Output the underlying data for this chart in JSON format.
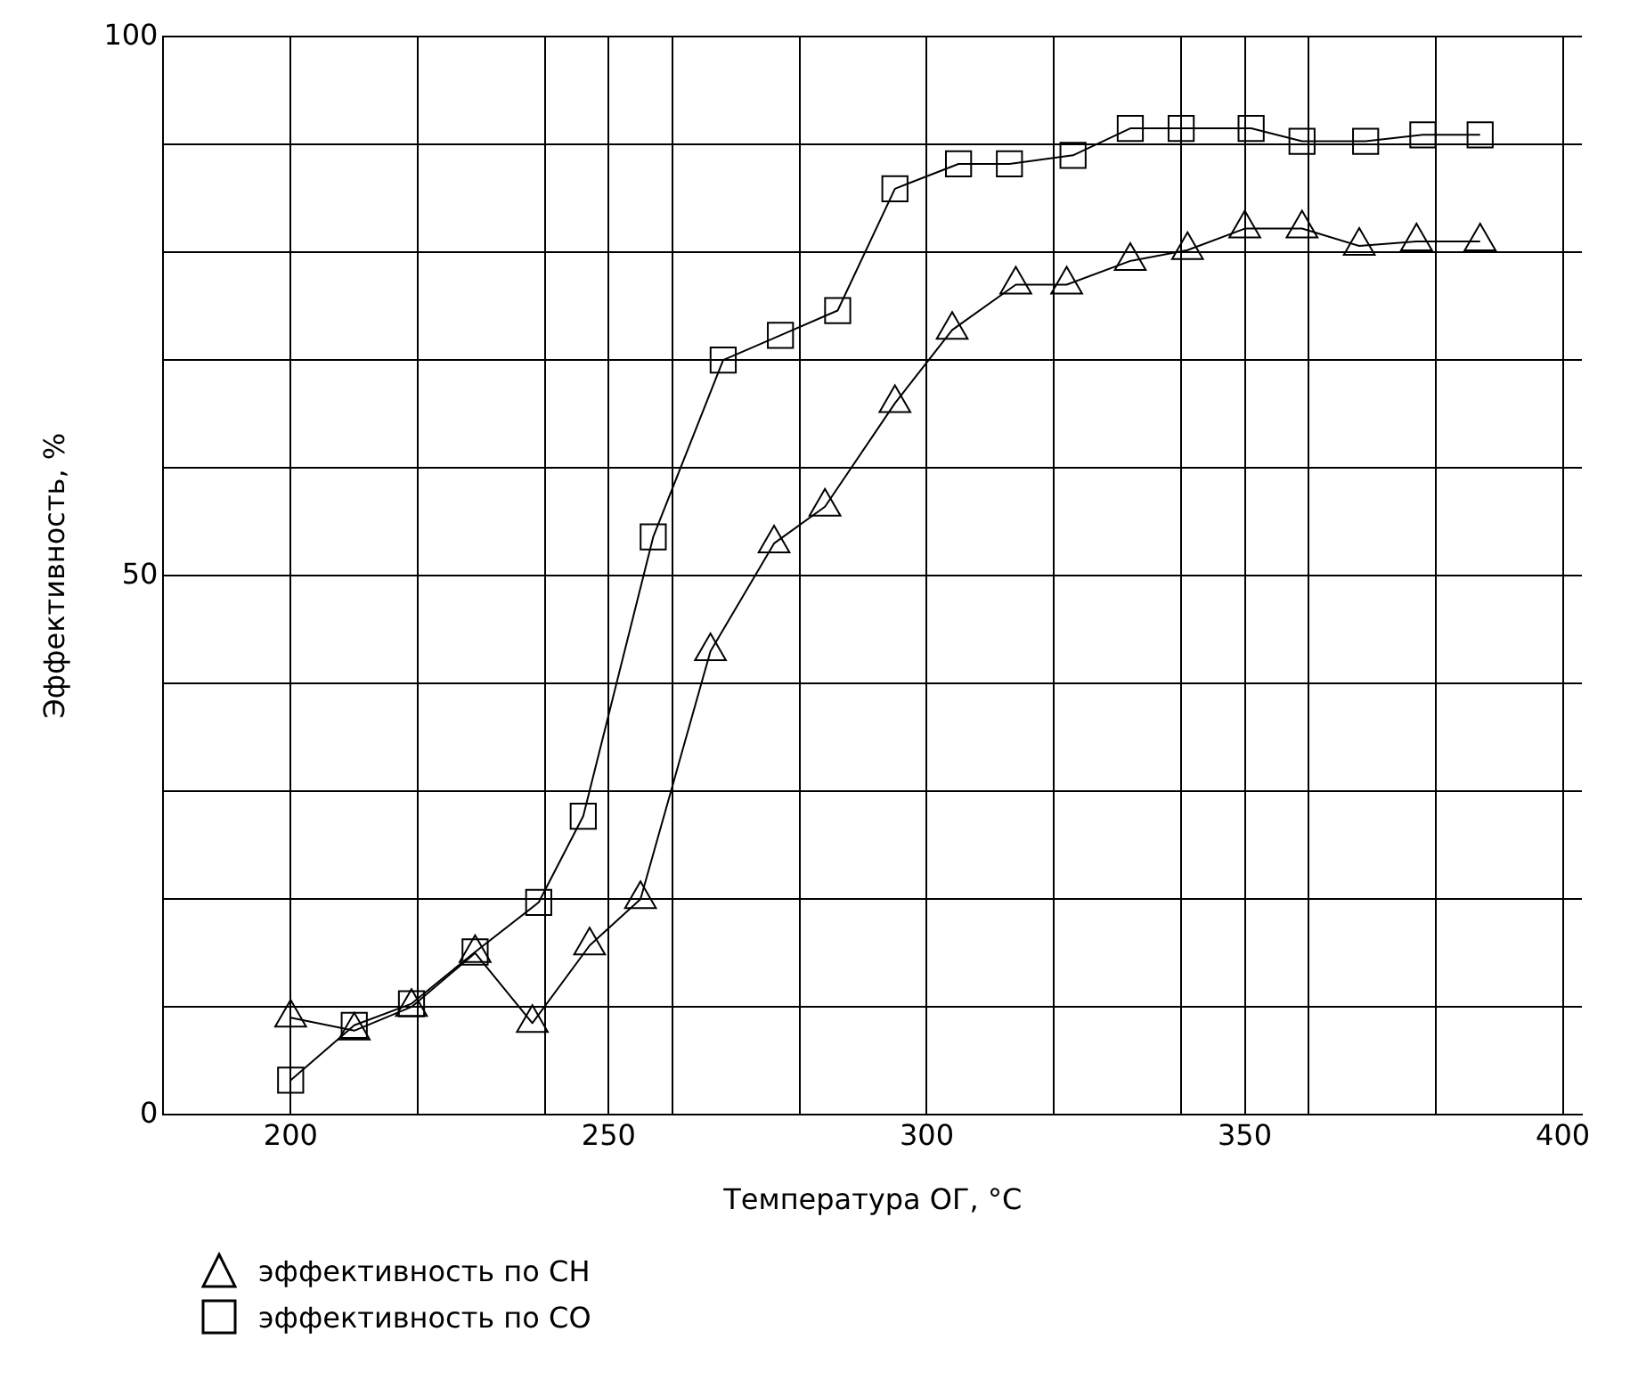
{
  "chart_data": {
    "type": "line",
    "xlabel": "Температура ОГ, °С",
    "ylabel": "Эффективность, %",
    "xlim": [
      180,
      403
    ],
    "ylim": [
      0,
      100
    ],
    "xticks": [
      200,
      {
        "value": 220,
        "label": null
      },
      {
        "value": 240,
        "label": null
      },
      250,
      {
        "value": 260,
        "label": null
      },
      {
        "value": 280,
        "label": null
      },
      300,
      {
        "value": 320,
        "label": null
      },
      {
        "value": 340,
        "label": null
      },
      350,
      {
        "value": 360,
        "label": null
      },
      {
        "value": 380,
        "label": null
      },
      400
    ],
    "yticks": [
      0,
      {
        "value": 10,
        "label": null
      },
      {
        "value": 20,
        "label": null
      },
      {
        "value": 30,
        "label": null
      },
      {
        "value": 40,
        "label": null
      },
      50,
      {
        "value": 60,
        "label": null
      },
      {
        "value": 70,
        "label": null
      },
      {
        "value": 80,
        "label": null
      },
      {
        "value": 90,
        "label": null
      },
      100
    ],
    "grid": true,
    "legend": "bottom",
    "line_style": "solid",
    "series": [
      {
        "name": "эффективность по CH",
        "color": "#000000",
        "marker": "triangle",
        "x": [
          200,
          210,
          219,
          229,
          238,
          247,
          255,
          266,
          276,
          284,
          295,
          304,
          314,
          322,
          332,
          341,
          350,
          359,
          368,
          377,
          387
        ],
        "values": [
          9,
          7.8,
          10,
          15,
          8.5,
          15.7,
          20,
          43,
          53,
          56.4,
          66,
          72.8,
          77,
          77,
          79.2,
          80.2,
          82.2,
          82.2,
          80.6,
          81,
          81
        ]
      },
      {
        "name": "эффективность по CO",
        "color": "#000000",
        "marker": "square",
        "x": [
          200,
          210,
          219,
          229,
          239,
          246,
          257,
          268,
          277,
          286,
          295,
          305,
          313,
          323,
          332,
          340,
          351,
          359,
          369,
          378,
          387
        ],
        "values": [
          3.2,
          8.3,
          10.3,
          15.1,
          19.7,
          27.7,
          53.6,
          70,
          72.3,
          74.6,
          85.9,
          88.2,
          88.2,
          89,
          91.5,
          91.5,
          91.5,
          90.3,
          90.3,
          90.9,
          90.9
        ]
      }
    ]
  }
}
